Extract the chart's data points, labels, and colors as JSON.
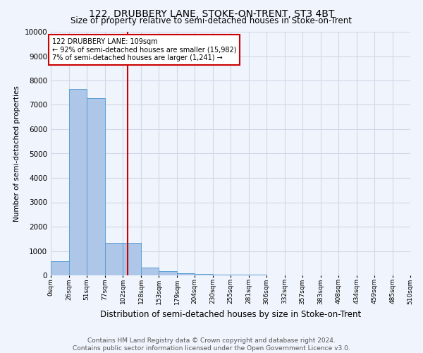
{
  "title": "122, DRUBBERY LANE, STOKE-ON-TRENT, ST3 4BT",
  "subtitle": "Size of property relative to semi-detached houses in Stoke-on-Trent",
  "xlabel": "Distribution of semi-detached houses by size in Stoke-on-Trent",
  "ylabel": "Number of semi-detached properties",
  "footer": "Contains HM Land Registry data © Crown copyright and database right 2024.\nContains public sector information licensed under the Open Government Licence v3.0.",
  "bar_edges": [
    0,
    26,
    51,
    77,
    102,
    128,
    153,
    179,
    204,
    230,
    255,
    281,
    306,
    332,
    357,
    383,
    408,
    434,
    459,
    485,
    510
  ],
  "bar_heights": [
    570,
    7650,
    7270,
    1340,
    1340,
    310,
    160,
    100,
    60,
    40,
    30,
    20,
    10,
    5,
    5,
    5,
    3,
    2,
    2,
    2
  ],
  "bar_color": "#aec6e8",
  "bar_edgecolor": "#5a9fd4",
  "property_size": 109,
  "vline_color": "#cc0000",
  "annotation_text": "122 DRUBBERY LANE: 109sqm\n← 92% of semi-detached houses are smaller (15,982)\n7% of semi-detached houses are larger (1,241) →",
  "annotation_box_edgecolor": "#cc0000",
  "annotation_box_facecolor": "#ffffff",
  "ylim": [
    0,
    10000
  ],
  "yticks": [
    0,
    1000,
    2000,
    3000,
    4000,
    5000,
    6000,
    7000,
    8000,
    9000,
    10000
  ],
  "tick_labels": [
    "0sqm",
    "26sqm",
    "51sqm",
    "77sqm",
    "102sqm",
    "128sqm",
    "153sqm",
    "179sqm",
    "204sqm",
    "230sqm",
    "255sqm",
    "281sqm",
    "306sqm",
    "332sqm",
    "357sqm",
    "383sqm",
    "408sqm",
    "434sqm",
    "459sqm",
    "485sqm",
    "510sqm"
  ],
  "grid_color": "#d0d8e8",
  "bg_color": "#f0f4fc",
  "title_fontsize": 10,
  "subtitle_fontsize": 8.5,
  "footer_fontsize": 6.5,
  "ylabel_fontsize": 7.5,
  "xlabel_fontsize": 8.5
}
